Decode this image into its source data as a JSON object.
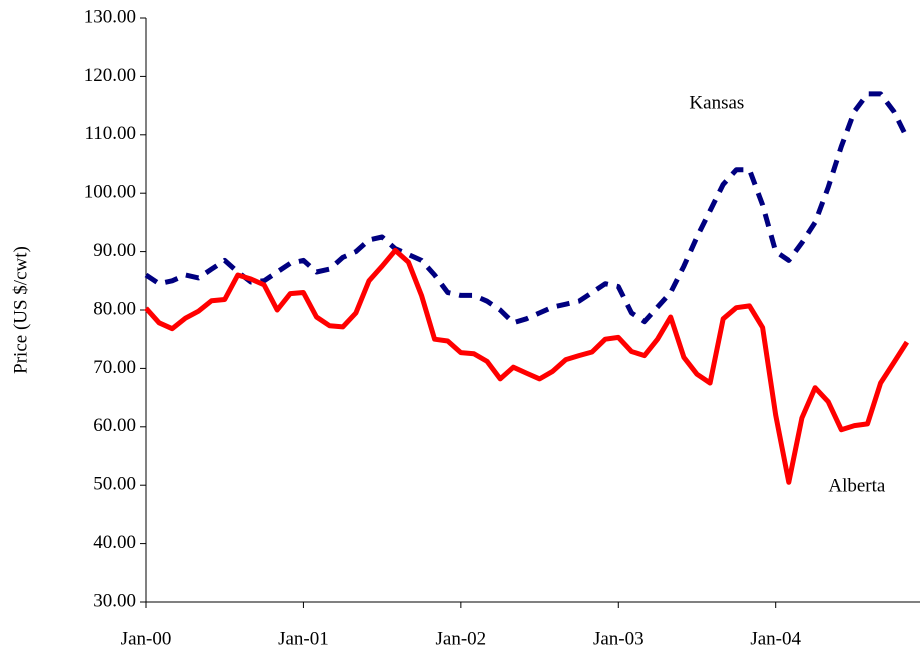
{
  "chart_data": {
    "type": "line",
    "y_label": "Price (US $/cwt)",
    "categories": [
      "Jan-00",
      null,
      null,
      null,
      null,
      null,
      null,
      null,
      null,
      null,
      null,
      null,
      "Jan-01",
      null,
      null,
      null,
      null,
      null,
      null,
      null,
      null,
      null,
      null,
      null,
      "Jan-02",
      null,
      null,
      null,
      null,
      null,
      null,
      null,
      null,
      null,
      null,
      null,
      "Jan-03",
      null,
      null,
      null,
      null,
      null,
      null,
      null,
      null,
      null,
      null,
      null,
      "Jan-04",
      null,
      null,
      null,
      null,
      null,
      null,
      null,
      null,
      null,
      null
    ],
    "series": [
      {
        "name": "Kansas",
        "color": "#000080",
        "line_style": "dashed",
        "values": [
          86.0,
          84.5,
          85.0,
          86.0,
          85.5,
          87.0,
          88.5,
          86.5,
          84.8,
          85.0,
          86.5,
          88.0,
          88.5,
          86.5,
          87.0,
          89.0,
          90.0,
          92.0,
          92.5,
          90.5,
          89.5,
          88.5,
          86.0,
          83.0,
          82.5,
          82.5,
          81.5,
          80.0,
          77.8,
          78.5,
          79.5,
          80.5,
          81.0,
          81.5,
          83.0,
          84.5,
          84.0,
          79.5,
          78.0,
          80.5,
          83.0,
          87.5,
          92.5,
          97.0,
          101.5,
          104.0,
          104.0,
          98.0,
          90.0,
          88.5,
          91.5,
          95.0,
          101.0,
          108.0,
          114.0,
          117.0,
          117.0,
          114.0,
          109.5
        ]
      },
      {
        "name": "Alberta",
        "color": "#ff0000",
        "line_style": "solid",
        "values": [
          80.3,
          77.8,
          76.8,
          78.6,
          79.8,
          81.6,
          81.8,
          86.0,
          85.3,
          84.3,
          80.0,
          82.8,
          83.0,
          78.8,
          77.3,
          77.1,
          79.5,
          85.0,
          87.5,
          90.2,
          88.2,
          82.5,
          75.0,
          74.7,
          72.7,
          72.5,
          71.2,
          68.2,
          70.2,
          69.2,
          68.2,
          69.5,
          71.5,
          72.2,
          72.8,
          75.0,
          75.3,
          72.9,
          72.2,
          75.0,
          78.8,
          71.9,
          69.0,
          67.5,
          78.5,
          80.4,
          80.7,
          77.0,
          62.0,
          50.5,
          61.5,
          66.7,
          64.3,
          59.5,
          60.2,
          60.5,
          67.5,
          71.0,
          74.5
        ]
      }
    ],
    "ylim": [
      30,
      130
    ],
    "yticks": [
      {
        "value": 30,
        "label": "30.00"
      },
      {
        "value": 40,
        "label": "40.00"
      },
      {
        "value": 50,
        "label": "50.00"
      },
      {
        "value": 60,
        "label": "60.00"
      },
      {
        "value": 70,
        "label": "70.00"
      },
      {
        "value": 80,
        "label": "80.00"
      },
      {
        "value": 90,
        "label": "90.00"
      },
      {
        "value": 100,
        "label": "100.00"
      },
      {
        "value": 110,
        "label": "110.00"
      },
      {
        "value": 120,
        "label": "120.00"
      },
      {
        "value": 130,
        "label": "130.00"
      }
    ],
    "grid": false,
    "legend": false
  }
}
